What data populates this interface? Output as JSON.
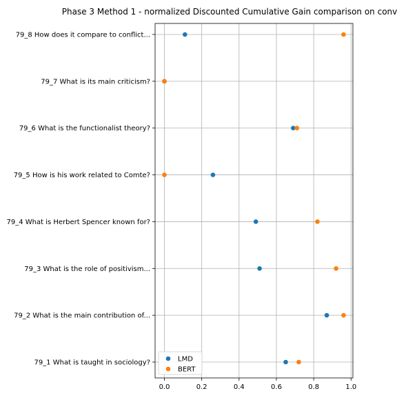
{
  "chart_data": {
    "type": "scatter",
    "title": "Phase 3 Method 1 - normalized Discounted Cumulative Gain comparison on conv",
    "xlabel": "",
    "ylabel": "",
    "xlim": [
      -0.05,
      1.01
    ],
    "x_ticks": [
      0.0,
      0.2,
      0.4,
      0.6,
      0.8,
      1.0
    ],
    "x_tick_labels": [
      "0.0",
      "0.2",
      "0.4",
      "0.6",
      "0.8",
      "1.0"
    ],
    "categories": [
      "79_1 What is taught in sociology?",
      "79_2 What is the main contribution of...",
      "79_3 What is the role of positivism...",
      "79_4 What is Herbert Spencer known for?",
      "79_5 How is his work related to Comte?",
      "79_6 What is the functionalist theory?",
      "79_7 What is its main criticism?",
      "79_8 How does it compare to conflict..."
    ],
    "series": [
      {
        "name": "LMD",
        "color": "#1f77b4",
        "values": [
          0.65,
          0.87,
          0.51,
          0.49,
          0.26,
          0.69,
          0.0,
          0.11
        ]
      },
      {
        "name": "BERT",
        "color": "#ff7f0e",
        "values": [
          0.72,
          0.96,
          0.92,
          0.82,
          0.0,
          0.71,
          0.0,
          0.96
        ]
      }
    ],
    "grid": true,
    "legend_position": "lower-left"
  }
}
